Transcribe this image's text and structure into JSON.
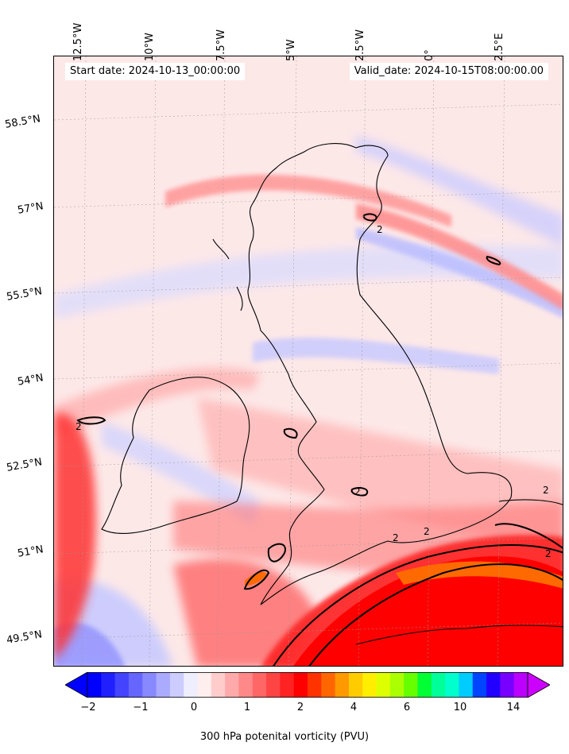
{
  "map": {
    "start_date": "Start date: 2024-10-13_00:00:00",
    "valid_date": "Valid_date: 2024-10-15T08:00:00.00",
    "lon_labels": [
      "12.5°W",
      "10°W",
      "7.5°W",
      "5°W",
      "2.5°W",
      "0°",
      "2.5°E"
    ],
    "lat_labels": [
      "58.5°N",
      "57°N",
      "55.5°N",
      "54°N",
      "52.5°N",
      "51°N",
      "49.5°N"
    ],
    "contour_label": "2",
    "variable": "300 hPa potential vorticity",
    "pressure_level_hpa": 300,
    "extent": {
      "lon_min": -13.5,
      "lon_max": 4,
      "lat_min": 49.2,
      "lat_max": 59.5
    },
    "gridlines": true,
    "coastlines": true
  },
  "colorbar": {
    "label": "300 hPa potenital vorticity (PVU)",
    "ticks": [
      "−2",
      "−1",
      "0",
      "1",
      "2",
      "4",
      "6",
      "10",
      "14"
    ],
    "extend": "both",
    "colors": [
      "#0000ff",
      "#2020ff",
      "#4444ff",
      "#6666ff",
      "#8888ff",
      "#aaaaff",
      "#ccccff",
      "#eeeeff",
      "#ffeeee",
      "#ffcccc",
      "#ffaaaa",
      "#ff8888",
      "#ff6666",
      "#ff4444",
      "#ff2222",
      "#ff0000",
      "#ff3300",
      "#ff6600",
      "#ff9900",
      "#ffcc00",
      "#ffee00",
      "#ddff00",
      "#aaff00",
      "#66ff00",
      "#00ff33",
      "#00ff99",
      "#00ffcc",
      "#00ccff",
      "#0044ff",
      "#2200ff",
      "#7700ff",
      "#bb00ff"
    ],
    "under_color": "#0000ff",
    "over_color": "#cc00ff"
  }
}
